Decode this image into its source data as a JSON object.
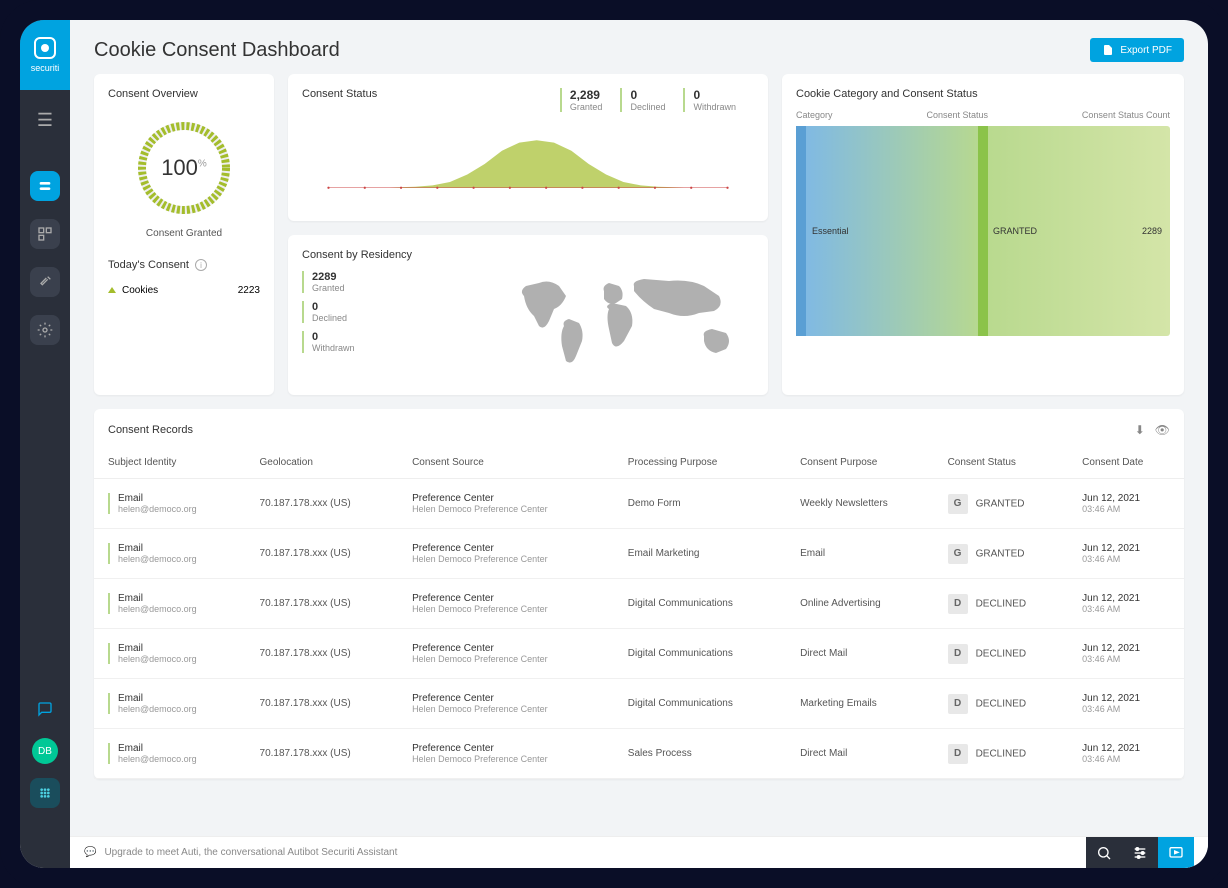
{
  "brand": "securiti",
  "page_title": "Cookie Consent Dashboard",
  "export_label": "Export PDF",
  "overview": {
    "title": "Consent Overview",
    "percent": "100",
    "label": "Consent Granted",
    "gauge_color": "#a4bd2c"
  },
  "todays_consent": {
    "title": "Today's Consent",
    "item_label": "Cookies",
    "item_value": "2223"
  },
  "consent_status": {
    "title": "Consent Status",
    "stats": [
      {
        "value": "2,289",
        "label": "Granted"
      },
      {
        "value": "0",
        "label": "Declined"
      },
      {
        "value": "0",
        "label": "Withdrawn"
      }
    ],
    "chart": {
      "type": "area",
      "points": [
        0,
        0,
        0,
        0,
        1,
        2,
        5,
        12,
        28,
        50,
        78,
        95,
        100,
        95,
        78,
        50,
        28,
        12,
        5,
        2,
        1,
        0,
        0,
        0
      ],
      "fill_color": "#a4bd2c",
      "axis_color": "#c44",
      "tick_color": "#c44"
    }
  },
  "residency": {
    "title": "Consent by Residency",
    "stats": [
      {
        "value": "2289",
        "label": "Granted"
      },
      {
        "value": "0",
        "label": "Declined"
      },
      {
        "value": "0",
        "label": "Withdrawn"
      }
    ],
    "map_color": "#b0b0b0"
  },
  "category_status": {
    "title": "Cookie Category and Consent Status",
    "columns": [
      "Category",
      "Consent Status",
      "Consent Status Count"
    ],
    "left_label": "Essential",
    "mid_label": "GRANTED",
    "right_value": "2289",
    "colors": {
      "left": "#5a9fd4",
      "mid": "#8bc34a",
      "gradient_from": "#7db8e8",
      "gradient_to": "#d4e5a8"
    }
  },
  "records": {
    "title": "Consent Records",
    "columns": [
      "Subject Identity",
      "Geolocation",
      "Consent Source",
      "Processing Purpose",
      "Consent Purpose",
      "Consent Status",
      "Consent Date"
    ],
    "rows": [
      {
        "identity_type": "Email",
        "identity_email": "helen@democo.org",
        "geo": "70.187.178.xxx (US)",
        "source": "Preference Center",
        "source_sub": "Helen Democo Preference Center",
        "processing_purpose": "Demo Form",
        "consent_purpose": "Weekly Newsletters",
        "status_code": "G",
        "status_label": "GRANTED",
        "date": "Jun 12, 2021",
        "time": "03:46 AM"
      },
      {
        "identity_type": "Email",
        "identity_email": "helen@democo.org",
        "geo": "70.187.178.xxx (US)",
        "source": "Preference Center",
        "source_sub": "Helen Democo Preference Center",
        "processing_purpose": "Email Marketing",
        "consent_purpose": "Email",
        "status_code": "G",
        "status_label": "GRANTED",
        "date": "Jun 12, 2021",
        "time": "03:46 AM"
      },
      {
        "identity_type": "Email",
        "identity_email": "helen@democo.org",
        "geo": "70.187.178.xxx (US)",
        "source": "Preference Center",
        "source_sub": "Helen Democo Preference Center",
        "processing_purpose": "Digital Communications",
        "consent_purpose": "Online Advertising",
        "status_code": "D",
        "status_label": "DECLINED",
        "date": "Jun 12, 2021",
        "time": "03:46 AM"
      },
      {
        "identity_type": "Email",
        "identity_email": "helen@democo.org",
        "geo": "70.187.178.xxx (US)",
        "source": "Preference Center",
        "source_sub": "Helen Democo Preference Center",
        "processing_purpose": "Digital Communications",
        "consent_purpose": "Direct Mail",
        "status_code": "D",
        "status_label": "DECLINED",
        "date": "Jun 12, 2021",
        "time": "03:46 AM"
      },
      {
        "identity_type": "Email",
        "identity_email": "helen@democo.org",
        "geo": "70.187.178.xxx (US)",
        "source": "Preference Center",
        "source_sub": "Helen Democo Preference Center",
        "processing_purpose": "Digital Communications",
        "consent_purpose": "Marketing Emails",
        "status_code": "D",
        "status_label": "DECLINED",
        "date": "Jun 12, 2021",
        "time": "03:46 AM"
      },
      {
        "identity_type": "Email",
        "identity_email": "helen@democo.org",
        "geo": "70.187.178.xxx (US)",
        "source": "Preference Center",
        "source_sub": "Helen Democo Preference Center",
        "processing_purpose": "Sales Process",
        "consent_purpose": "Direct Mail",
        "status_code": "D",
        "status_label": "DECLINED",
        "date": "Jun 12, 2021",
        "time": "03:46 AM"
      }
    ]
  },
  "footer": {
    "text": "Upgrade to meet Auti, the conversational Autibot Securiti Assistant"
  },
  "avatar_initials": "DB",
  "colors": {
    "brand_blue": "#00a3e0",
    "card_bg": "#ffffff",
    "page_bg": "#f2f4f6",
    "sidebar_bg": "#2a2f3a",
    "accent_green": "#a4bd2c"
  }
}
